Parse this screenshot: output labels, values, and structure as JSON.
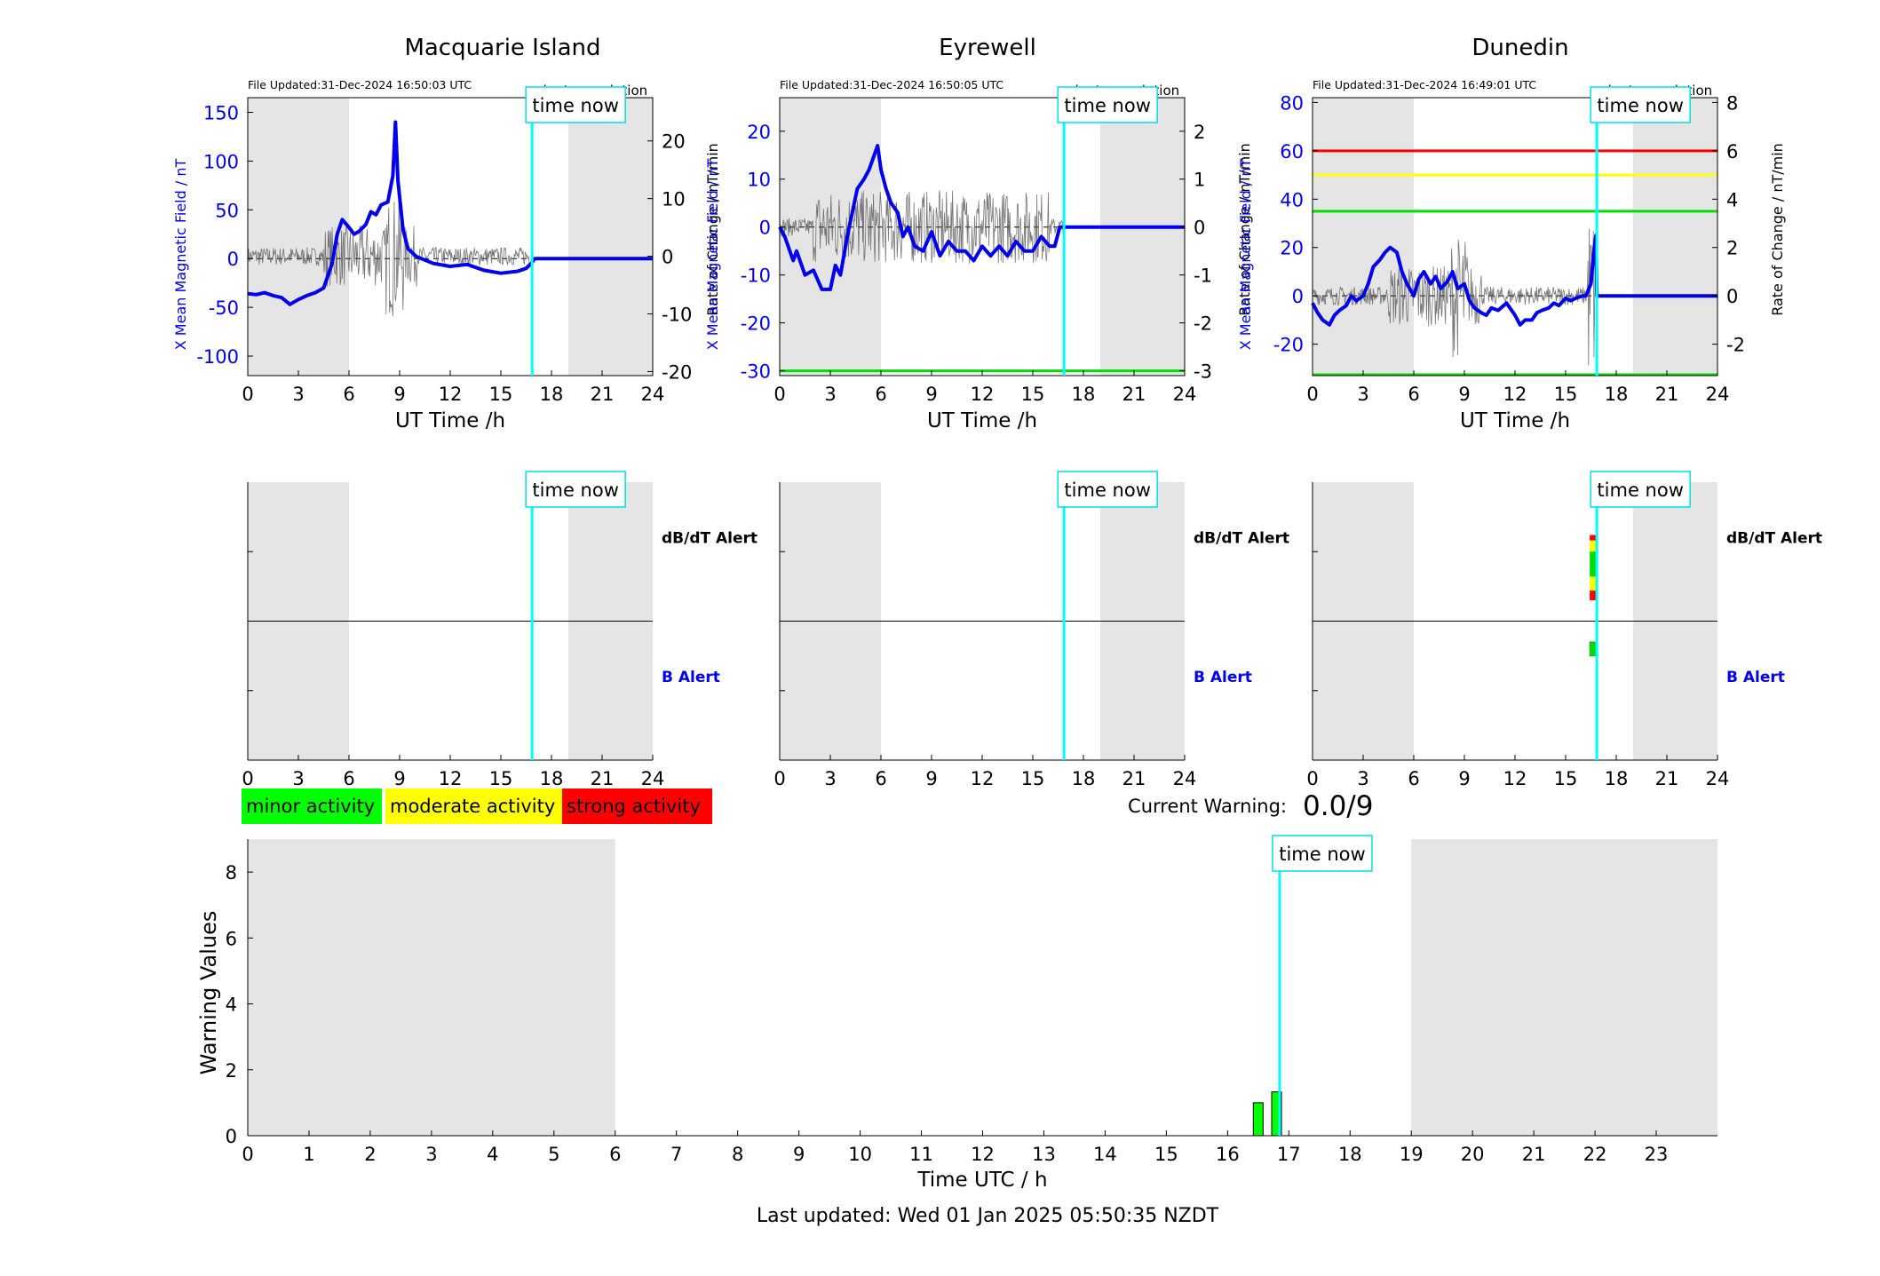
{
  "stations": [
    {
      "name": "Macquarie Island",
      "file_updated": "File Updated:31-Dec-2024 16:50:03 UTC",
      "resolution": "minute resolution",
      "left_ylabel": "X Mean Magnetic Field / nT",
      "right_ylabel": "Rate of Change / nT/min",
      "left_ticks": [
        "150",
        "100",
        "50",
        "0",
        "-50",
        "-100"
      ],
      "right_ticks": [
        "20",
        "10",
        "0",
        "-10",
        "-20"
      ],
      "ylim": [
        -120,
        165
      ],
      "y2lim": [
        -20.7,
        27.5
      ],
      "threshold_lines": [],
      "x_series_nT": [
        [
          0,
          -36
        ],
        [
          0.5,
          -37
        ],
        [
          1,
          -35
        ],
        [
          1.5,
          -38
        ],
        [
          2,
          -40
        ],
        [
          2.5,
          -47
        ],
        [
          3,
          -42
        ],
        [
          3.5,
          -38
        ],
        [
          4,
          -35
        ],
        [
          4.5,
          -30
        ],
        [
          5,
          -5
        ],
        [
          5.3,
          25
        ],
        [
          5.6,
          40
        ],
        [
          6,
          32
        ],
        [
          6.3,
          25
        ],
        [
          6.6,
          28
        ],
        [
          7,
          35
        ],
        [
          7.3,
          48
        ],
        [
          7.6,
          45
        ],
        [
          7.9,
          55
        ],
        [
          8.3,
          58
        ],
        [
          8.6,
          85
        ],
        [
          8.75,
          140
        ],
        [
          8.9,
          80
        ],
        [
          9.2,
          30
        ],
        [
          9.5,
          10
        ],
        [
          10,
          2
        ],
        [
          11,
          -5
        ],
        [
          12,
          -8
        ],
        [
          13,
          -6
        ],
        [
          14,
          -12
        ],
        [
          15,
          -15
        ],
        [
          16,
          -13
        ],
        [
          16.5,
          -10
        ],
        [
          16.8,
          -5
        ],
        [
          17,
          0
        ],
        [
          24,
          0
        ]
      ],
      "warning_segments": []
    },
    {
      "name": "Eyrewell",
      "file_updated": "File Updated:31-Dec-2024 16:50:05 UTC",
      "resolution": "minute resolution",
      "left_ylabel": "X Mean Magnetic Field / nT",
      "right_ylabel": "Rate of Change / nT/min",
      "left_ticks": [
        "20",
        "10",
        "0",
        "-10",
        "-20",
        "-30"
      ],
      "right_ticks": [
        "2",
        "1",
        "0",
        "-1",
        "-2",
        "-3"
      ],
      "ylim": [
        -31,
        27
      ],
      "y2lim": [
        -3.1,
        2.7
      ],
      "threshold_lines": [
        {
          "value": -30,
          "color": "#00dd00"
        }
      ],
      "x_series_nT": [
        [
          0,
          0
        ],
        [
          0.3,
          -2
        ],
        [
          0.8,
          -7
        ],
        [
          1,
          -5
        ],
        [
          1.5,
          -10
        ],
        [
          2,
          -9
        ],
        [
          2.5,
          -13
        ],
        [
          3,
          -13
        ],
        [
          3.3,
          -8
        ],
        [
          3.6,
          -10
        ],
        [
          4,
          -2
        ],
        [
          4.3,
          3
        ],
        [
          4.6,
          8
        ],
        [
          5,
          10
        ],
        [
          5.3,
          12
        ],
        [
          5.6,
          15
        ],
        [
          5.8,
          17
        ],
        [
          6,
          12
        ],
        [
          6.3,
          8
        ],
        [
          6.6,
          5
        ],
        [
          7,
          3
        ],
        [
          7.3,
          -2
        ],
        [
          7.6,
          0
        ],
        [
          8,
          -4
        ],
        [
          8.5,
          -5
        ],
        [
          9,
          -1
        ],
        [
          9.5,
          -6
        ],
        [
          10,
          -3
        ],
        [
          10.5,
          -5
        ],
        [
          11,
          -5
        ],
        [
          11.5,
          -7
        ],
        [
          12,
          -4
        ],
        [
          12.5,
          -6
        ],
        [
          13,
          -4
        ],
        [
          13.5,
          -6
        ],
        [
          14,
          -3
        ],
        [
          14.5,
          -5
        ],
        [
          15,
          -5
        ],
        [
          15.5,
          -2
        ],
        [
          16,
          -4
        ],
        [
          16.3,
          -4
        ],
        [
          16.6,
          0
        ],
        [
          24,
          0
        ]
      ],
      "warning_segments": []
    },
    {
      "name": "Dunedin",
      "file_updated": "File Updated:31-Dec-2024 16:49:01 UTC",
      "resolution": "minute resolution",
      "left_ylabel": "X Mean Magnetic Field / nT",
      "right_ylabel": "Rate of Change / nT/min",
      "left_ticks": [
        "80",
        "60",
        "40",
        "20",
        "0",
        "-20"
      ],
      "right_ticks": [
        "8",
        "6",
        "4",
        "2",
        "0",
        "-2"
      ],
      "ylim": [
        -33,
        82
      ],
      "y2lim": [
        -3.3,
        8.2
      ],
      "threshold_lines": [
        {
          "value": 60,
          "color": "#ff0000"
        },
        {
          "value": 50,
          "color": "#ffff00"
        },
        {
          "value": 35,
          "color": "#00dd00"
        },
        {
          "value": -33,
          "color": "#00dd00"
        }
      ],
      "x_series_nT": [
        [
          0,
          -3
        ],
        [
          0.3,
          -7
        ],
        [
          0.6,
          -10
        ],
        [
          1,
          -12
        ],
        [
          1.3,
          -8
        ],
        [
          1.6,
          -6
        ],
        [
          2,
          -4
        ],
        [
          2.3,
          0
        ],
        [
          2.6,
          -2
        ],
        [
          3,
          0
        ],
        [
          3.3,
          5
        ],
        [
          3.6,
          12
        ],
        [
          4,
          15
        ],
        [
          4.3,
          18
        ],
        [
          4.6,
          20
        ],
        [
          5,
          18
        ],
        [
          5.3,
          10
        ],
        [
          5.6,
          5
        ],
        [
          6,
          0
        ],
        [
          6.3,
          7
        ],
        [
          6.6,
          10
        ],
        [
          7,
          5
        ],
        [
          7.3,
          8
        ],
        [
          7.6,
          3
        ],
        [
          8,
          6
        ],
        [
          8.3,
          10
        ],
        [
          8.6,
          3
        ],
        [
          9,
          5
        ],
        [
          9.3,
          -2
        ],
        [
          9.6,
          -5
        ],
        [
          10,
          -7
        ],
        [
          10.3,
          -8
        ],
        [
          10.6,
          -5
        ],
        [
          11,
          -6
        ],
        [
          11.5,
          -3
        ],
        [
          12,
          -8
        ],
        [
          12.3,
          -12
        ],
        [
          12.6,
          -10
        ],
        [
          13,
          -10
        ],
        [
          13.3,
          -7
        ],
        [
          13.6,
          -6
        ],
        [
          14,
          -5
        ],
        [
          14.3,
          -3
        ],
        [
          14.6,
          -4
        ],
        [
          15,
          -1
        ],
        [
          15.3,
          -2
        ],
        [
          15.6,
          -1
        ],
        [
          16,
          0
        ],
        [
          16.2,
          0
        ],
        [
          16.5,
          5
        ],
        [
          16.7,
          20
        ],
        [
          16.8,
          25
        ],
        [
          16.85,
          0
        ],
        [
          24,
          0
        ]
      ],
      "warning_segments": [
        {
          "panel": "dbdt",
          "color": "#ff0000",
          "from": 0.62,
          "to": 0.58
        },
        {
          "panel": "dbdt",
          "color": "#ffff00",
          "from": 0.58,
          "to": 0.5
        },
        {
          "panel": "dbdt",
          "color": "#00dd00",
          "from": 0.5,
          "to": 0.32
        },
        {
          "panel": "dbdt",
          "color": "#ffff00",
          "from": 0.32,
          "to": 0.22
        },
        {
          "panel": "dbdt",
          "color": "#ff0000",
          "from": 0.22,
          "to": 0.15
        },
        {
          "panel": "b",
          "color": "#00dd00",
          "from": 0.85,
          "to": 0.75
        }
      ]
    }
  ],
  "common": {
    "x_axis_label": "UT Time /h",
    "x_ticks": [
      "0",
      "3",
      "6",
      "9",
      "12",
      "15",
      "18",
      "21",
      "24"
    ],
    "xlim": [
      0,
      24
    ],
    "time_now_label": "time now",
    "time_now_hour": 16.85,
    "night_shade_ranges": [
      [
        0,
        6
      ],
      [
        19,
        24
      ]
    ],
    "dbdt_alert_label": "dB/dT Alert",
    "b_alert_label": "B Alert"
  },
  "legend": {
    "minor": {
      "label": "minor activity",
      "color": "#00ff00"
    },
    "moderate": {
      "label": "moderate activity",
      "color": "#ffff00"
    },
    "strong": {
      "label": "strong activity",
      "color": "#ff0000"
    }
  },
  "current_warning": {
    "label": "Current Warning:",
    "value": "0.0/9"
  },
  "chart_data": {
    "type": "bar",
    "ylabel": "Warning Values",
    "xlabel": "Time UTC / h",
    "ylim": [
      0,
      9
    ],
    "xlim": [
      0,
      24
    ],
    "y_ticks": [
      "0",
      "2",
      "4",
      "6",
      "8"
    ],
    "x_ticks": [
      "0",
      "1",
      "2",
      "3",
      "4",
      "5",
      "6",
      "7",
      "8",
      "9",
      "10",
      "11",
      "12",
      "13",
      "14",
      "15",
      "16",
      "17",
      "18",
      "19",
      "20",
      "21",
      "22",
      "23"
    ],
    "night_shade_ranges": [
      [
        0,
        6
      ],
      [
        19,
        24
      ]
    ],
    "time_now_label": "time now",
    "time_now_hour": 16.85,
    "bars": [
      {
        "x": 16.5,
        "value": 1.0,
        "color": "#00ff00"
      },
      {
        "x": 16.8,
        "value": 1.33,
        "color": "#00ff00"
      }
    ]
  },
  "footer": "Last updated: Wed 01 Jan 2025 05:50:35 NZDT"
}
